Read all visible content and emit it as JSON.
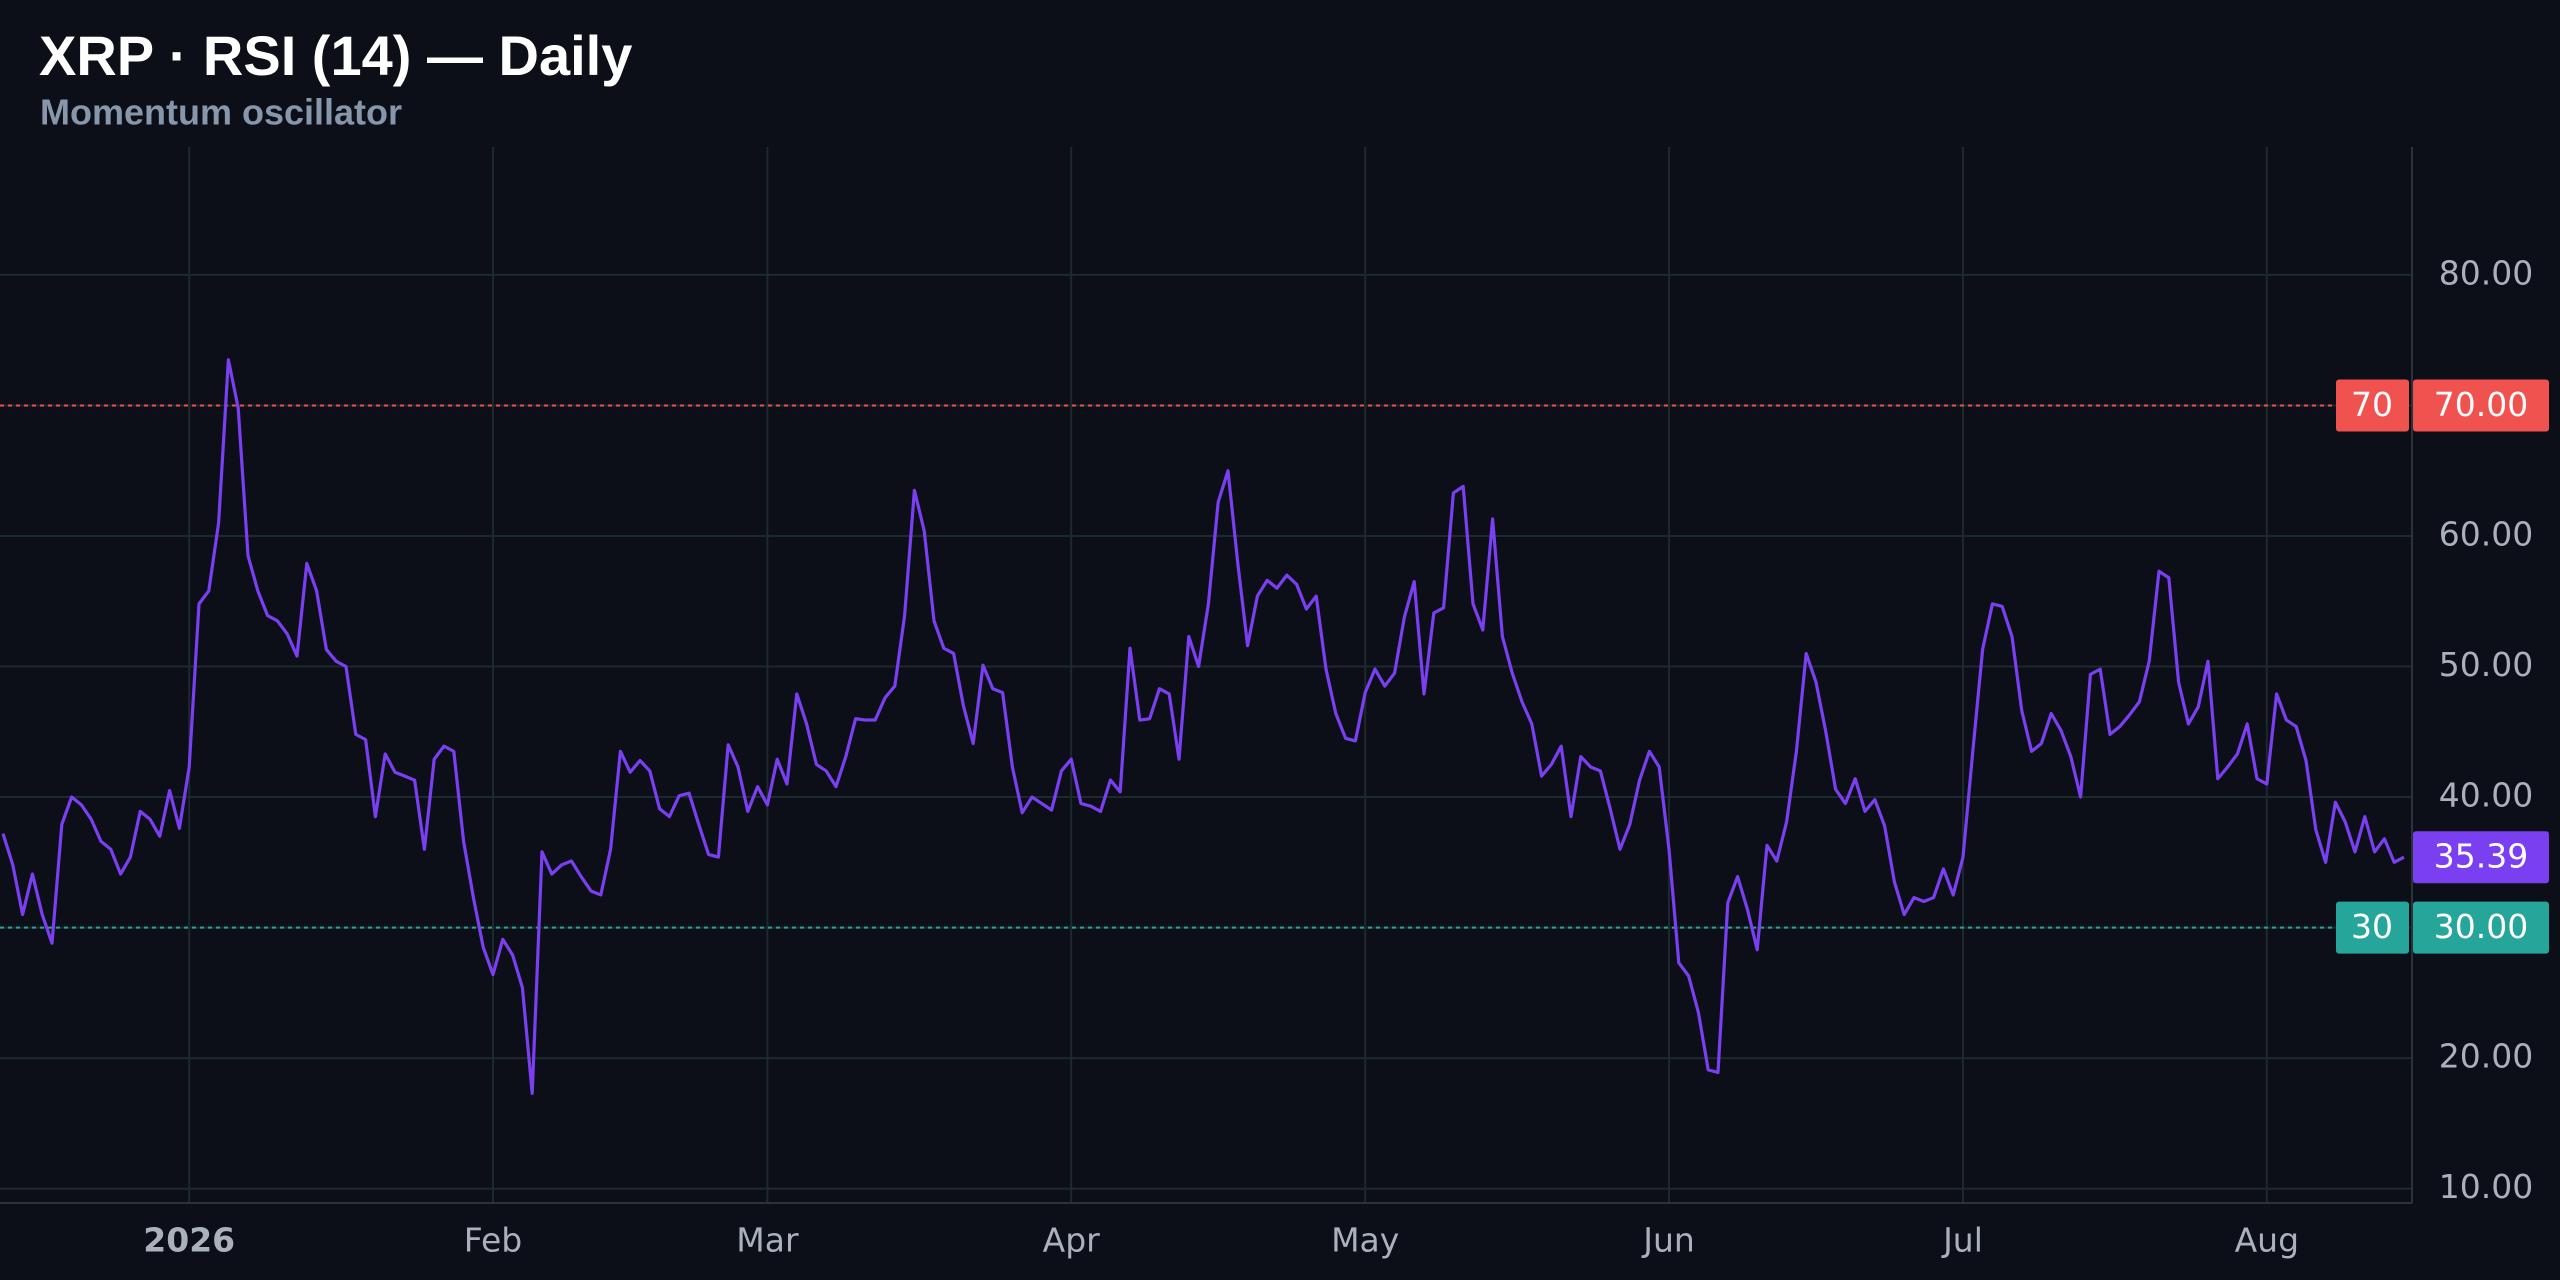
{
  "chart_data": {
    "type": "line",
    "title": "XRP · RSI (14) — Daily",
    "subtitle": "Momentum oscillator",
    "categories": [
      null,
      null,
      null,
      null,
      null,
      null,
      null,
      null,
      null,
      null,
      null,
      null,
      null,
      null,
      null,
      null,
      null,
      null,
      null,
      "2026",
      null,
      null,
      null,
      null,
      null,
      null,
      null,
      null,
      null,
      null,
      null,
      null,
      null,
      null,
      null,
      null,
      null,
      null,
      null,
      null,
      null,
      null,
      null,
      null,
      null,
      null,
      null,
      null,
      null,
      null,
      "Feb",
      null,
      null,
      null,
      null,
      null,
      null,
      null,
      null,
      null,
      null,
      null,
      null,
      null,
      null,
      null,
      null,
      null,
      null,
      null,
      null,
      null,
      null,
      null,
      null,
      null,
      null,
      null,
      "Mar",
      null,
      null,
      null,
      null,
      null,
      null,
      null,
      null,
      null,
      null,
      null,
      null,
      null,
      null,
      null,
      null,
      null,
      null,
      null,
      null,
      null,
      null,
      null,
      null,
      null,
      null,
      null,
      null,
      null,
      null,
      "Apr",
      null,
      null,
      null,
      null,
      null,
      null,
      null,
      null,
      null,
      null,
      null,
      null,
      null,
      null,
      null,
      null,
      null,
      null,
      null,
      null,
      null,
      null,
      null,
      null,
      null,
      null,
      null,
      null,
      null,
      "May",
      null,
      null,
      null,
      null,
      null,
      null,
      null,
      null,
      null,
      null,
      null,
      null,
      null,
      null,
      null,
      null,
      null,
      null,
      null,
      null,
      null,
      null,
      null,
      null,
      null,
      null,
      null,
      null,
      null,
      null,
      "Jun",
      null,
      null,
      null,
      null,
      null,
      null,
      null,
      null,
      null,
      null,
      null,
      null,
      null,
      null,
      null,
      null,
      null,
      null,
      null,
      null,
      null,
      null,
      null,
      null,
      null,
      null,
      null,
      null,
      null,
      "Jul",
      null,
      null,
      null,
      null,
      null,
      null,
      null,
      null,
      null,
      null,
      null,
      null,
      null,
      null,
      null,
      null,
      null,
      null,
      null,
      null,
      null,
      null,
      null,
      null,
      null,
      null,
      null,
      null,
      null,
      null,
      "Aug",
      null,
      null,
      null,
      null,
      null,
      null,
      null,
      null,
      null,
      null,
      null,
      null,
      null,
      null
    ],
    "series": [
      {
        "name": "RSI (14)",
        "color": "#7b3ff2",
        "values": [
          37.2,
          34.8,
          31,
          34.1,
          31,
          28.8,
          37.9,
          40,
          39.4,
          38.3,
          36.6,
          36,
          34.1,
          35.4,
          38.9,
          38.3,
          37,
          40.5,
          37.6,
          42.3,
          54.8,
          55.8,
          61,
          73.5,
          69.8,
          58.5,
          55.8,
          53.9,
          53.5,
          52.5,
          50.8,
          57.9,
          55.8,
          51.3,
          50.4,
          50,
          44.8,
          44.4,
          38.5,
          43.3,
          41.9,
          41.6,
          41.3,
          36,
          42.9,
          43.9,
          43.5,
          36.6,
          32.3,
          28.5,
          26.4,
          29.1,
          27.9,
          25.4,
          17.3,
          35.8,
          34.1,
          34.8,
          35.1,
          33.9,
          32.8,
          32.5,
          36,
          43.5,
          41.9,
          42.8,
          42,
          39.1,
          38.5,
          40.1,
          40.3,
          37.9,
          35.6,
          35.4,
          44,
          42.3,
          38.9,
          40.8,
          39.4,
          42.9,
          41,
          47.9,
          45.6,
          42.5,
          42,
          40.8,
          43.1,
          46,
          45.9,
          45.9,
          47.6,
          48.5,
          53.9,
          63.5,
          60.4,
          53.5,
          51.4,
          51,
          47,
          44.1,
          50.1,
          48.3,
          48,
          42.3,
          38.8,
          40,
          39.5,
          39,
          42,
          42.9,
          39.5,
          39.3,
          38.9,
          41.3,
          40.4,
          51.4,
          45.9,
          46,
          48.3,
          47.9,
          42.9,
          52.3,
          50,
          54.8,
          62.6,
          65,
          57.9,
          51.6,
          55.4,
          56.6,
          56,
          57,
          56.3,
          54.4,
          55.4,
          49.8,
          46.4,
          44.5,
          44.3,
          48,
          49.8,
          48.5,
          49.5,
          53.8,
          56.5,
          47.9,
          54.1,
          54.5,
          63.3,
          63.8,
          54.8,
          52.8,
          61.3,
          52.3,
          49.5,
          47.3,
          45.6,
          41.6,
          42.5,
          43.9,
          38.5,
          43.1,
          42.3,
          42,
          39.1,
          36,
          37.9,
          41.3,
          43.5,
          42.3,
          36,
          27.3,
          26.3,
          23.5,
          19.1,
          18.9,
          31.9,
          33.9,
          31.4,
          28.3,
          36.3,
          35.1,
          38.1,
          43.5,
          51,
          48.8,
          45,
          40.6,
          39.5,
          41.4,
          38.9,
          39.8,
          37.8,
          33.5,
          31,
          32.3,
          32,
          32.3,
          34.5,
          32.5,
          35.4,
          43.5,
          51.3,
          54.8,
          54.6,
          52.3,
          46.6,
          43.5,
          44.1,
          46.4,
          45.1,
          43.1,
          40,
          49.4,
          49.8,
          44.8,
          45.4,
          46.3,
          47.3,
          50.4,
          57.3,
          56.8,
          48.8,
          45.6,
          46.9,
          50.4,
          41.4,
          42.3,
          43.3,
          45.6,
          41.4,
          41,
          47.9,
          45.9,
          45.4,
          42.8,
          37.5,
          35,
          39.6,
          38.1,
          35.8,
          38.5,
          35.8,
          36.8,
          35,
          35.39
        ]
      }
    ],
    "ylim": [
      8.9,
      89.8
    ],
    "yticks": [
      {
        "value": 10,
        "label": "10.00"
      },
      {
        "value": 20,
        "label": "20.00"
      },
      {
        "value": 30,
        "label": "30.00"
      },
      {
        "value": 40,
        "label": "40.00"
      },
      {
        "value": 50,
        "label": "50.00"
      },
      {
        "value": 60,
        "label": "60.00"
      },
      {
        "value": 70,
        "label": "70.00"
      },
      {
        "value": 80,
        "label": "80.00"
      }
    ],
    "hlines": [
      {
        "value": 70,
        "tag": "70",
        "label": "70.00",
        "color": "#f0524f"
      },
      {
        "value": 30,
        "tag": "30",
        "label": "30.00",
        "color": "#26a69a"
      }
    ],
    "grid": true
  }
}
